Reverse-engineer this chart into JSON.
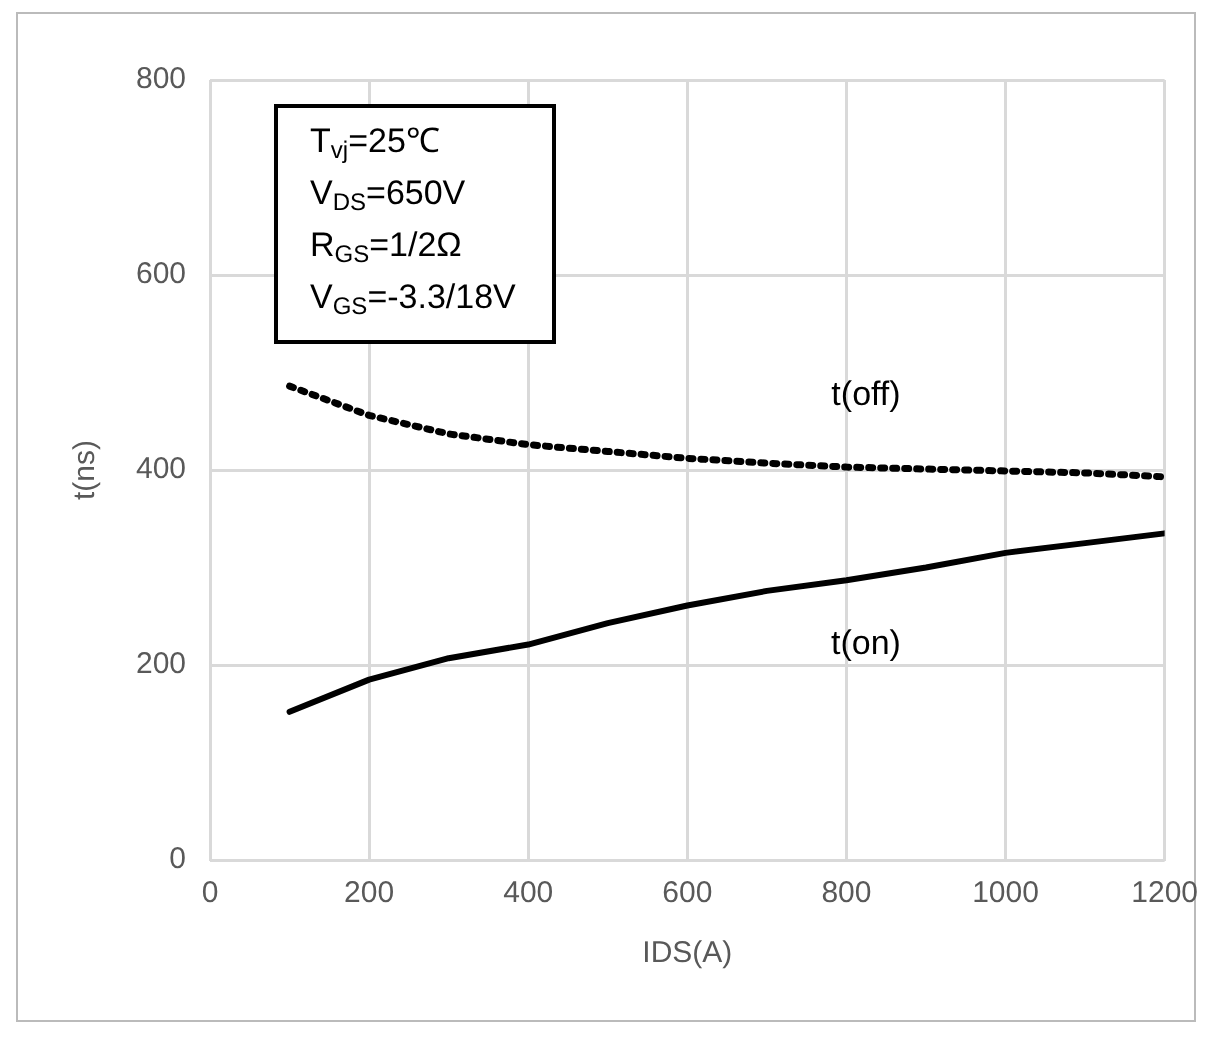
{
  "chart_data": {
    "type": "line",
    "xlabel": "IDS(A)",
    "ylabel": "t(ns)",
    "x": [
      100,
      200,
      300,
      400,
      500,
      600,
      700,
      800,
      900,
      1000,
      1100,
      1200
    ],
    "series": [
      {
        "name": "t(off)",
        "color": "#000000",
        "line_style": "dotted",
        "values": [
          486,
          456,
          437,
          426,
          419,
          412,
          407,
          403,
          401,
          399,
          397,
          393
        ]
      },
      {
        "name": "t(on)",
        "color": "#000000",
        "line_style": "solid",
        "values": [
          152,
          185,
          207,
          221,
          243,
          261,
          276,
          287,
          300,
          315,
          325,
          335
        ]
      }
    ],
    "xlim": [
      0,
      1200
    ],
    "xticks": [
      0,
      200,
      400,
      600,
      800,
      1000,
      1200
    ],
    "ylim": [
      0,
      800
    ],
    "yticks": [
      0,
      200,
      400,
      600,
      800
    ],
    "annotations": [
      "T$_{vj}$=25℃",
      "V$_{DS}$=650V",
      "R$_{GS}$=1/2Ω",
      "V$_{GS}$=-3.3/18V"
    ],
    "grid": true,
    "legend": false,
    "marker": "none"
  }
}
